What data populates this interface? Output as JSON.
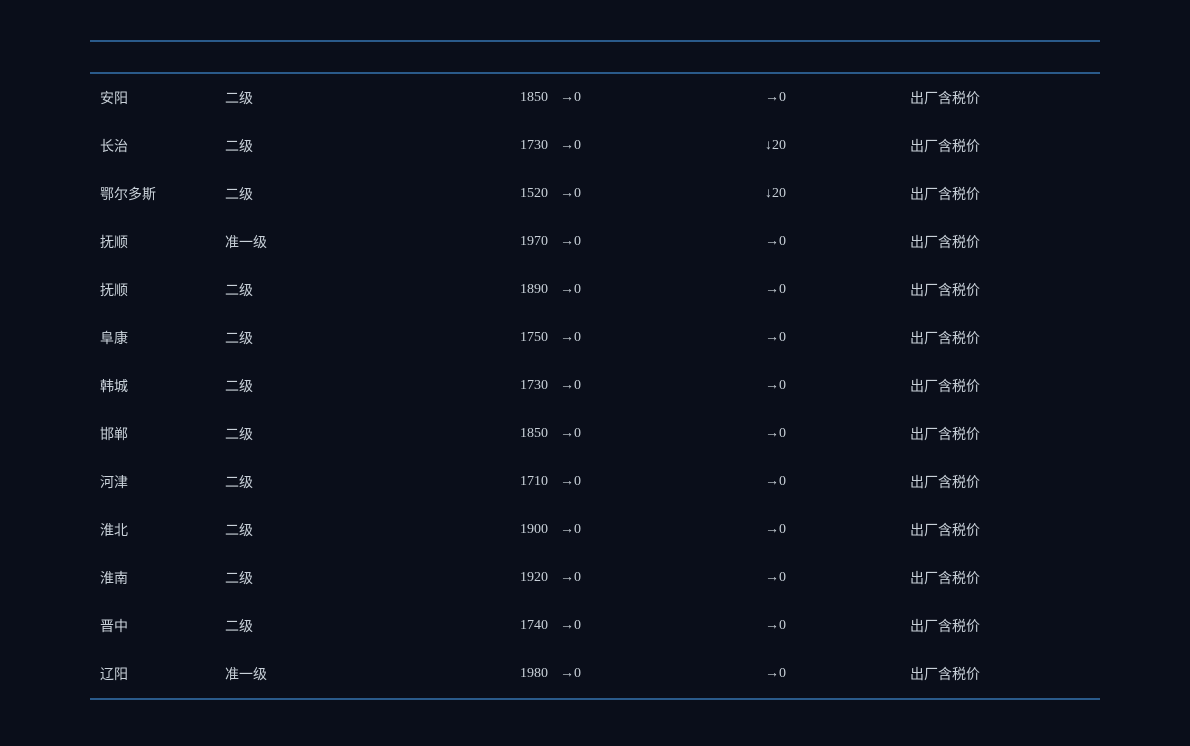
{
  "table": {
    "background_color": "#0a0e1a",
    "text_color": "#c9d1d9",
    "rule_color": "#2a5a8a",
    "font_size": 14,
    "arrow_right": "→",
    "arrow_down": "↓",
    "rows": [
      {
        "city": "安阳",
        "grade": "二级",
        "price": "1850",
        "daily": "→0",
        "change": "→0",
        "note": "出厂含税价"
      },
      {
        "city": "长治",
        "grade": "二级",
        "price": "1730",
        "daily": "→0",
        "change": "↓20",
        "note": "出厂含税价"
      },
      {
        "city": "鄂尔多斯",
        "grade": "二级",
        "price": "1520",
        "daily": "→0",
        "change": "↓20",
        "note": "出厂含税价"
      },
      {
        "city": "抚顺",
        "grade": "准一级",
        "price": "1970",
        "daily": "→0",
        "change": "→0",
        "note": "出厂含税价"
      },
      {
        "city": "抚顺",
        "grade": "二级",
        "price": "1890",
        "daily": "→0",
        "change": "→0",
        "note": "出厂含税价"
      },
      {
        "city": "阜康",
        "grade": "二级",
        "price": "1750",
        "daily": "→0",
        "change": "→0",
        "note": "出厂含税价"
      },
      {
        "city": "韩城",
        "grade": "二级",
        "price": "1730",
        "daily": "→0",
        "change": "→0",
        "note": "出厂含税价"
      },
      {
        "city": "邯郸",
        "grade": "二级",
        "price": "1850",
        "daily": "→0",
        "change": "→0",
        "note": "出厂含税价"
      },
      {
        "city": "河津",
        "grade": "二级",
        "price": "1710",
        "daily": "→0",
        "change": "→0",
        "note": "出厂含税价"
      },
      {
        "city": "淮北",
        "grade": "二级",
        "price": "1900",
        "daily": "→0",
        "change": "→0",
        "note": "出厂含税价"
      },
      {
        "city": "淮南",
        "grade": "二级",
        "price": "1920",
        "daily": "→0",
        "change": "→0",
        "note": "出厂含税价"
      },
      {
        "city": "晋中",
        "grade": "二级",
        "price": "1740",
        "daily": "→0",
        "change": "→0",
        "note": "出厂含税价"
      },
      {
        "city": "辽阳",
        "grade": "准一级",
        "price": "1980",
        "daily": "→0",
        "change": "→0",
        "note": "出厂含税价"
      }
    ]
  }
}
